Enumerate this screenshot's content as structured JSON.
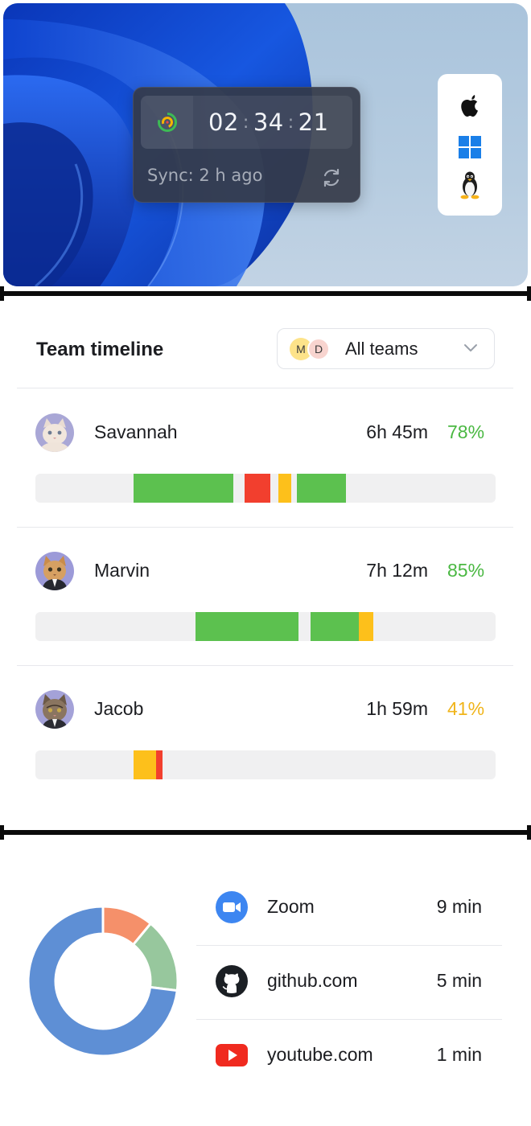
{
  "desktop": {
    "timer": {
      "hours": "02",
      "minutes": "34",
      "seconds": "21"
    },
    "sync_text": "Sync: 2 h ago",
    "icons": [
      "activity-rings-icon",
      "refresh-icon"
    ],
    "os_list": [
      "apple-icon",
      "windows-icon",
      "linux-icon"
    ]
  },
  "timeline": {
    "title": "Team timeline",
    "team_filter": {
      "label": "All teams",
      "avatars": [
        "M",
        "D"
      ]
    },
    "members": [
      {
        "name": "Savannah",
        "time": "6h 45m",
        "percent": "78%",
        "percent_color": "#4ab842",
        "segments": [
          {
            "start": 0.214,
            "end": 0.43,
            "color": "#5cc14f"
          },
          {
            "start": 0.455,
            "end": 0.51,
            "color": "#f23f2e"
          },
          {
            "start": 0.528,
            "end": 0.556,
            "color": "#fdc01b"
          },
          {
            "start": 0.569,
            "end": 0.674,
            "color": "#5cc14f"
          }
        ]
      },
      {
        "name": "Marvin",
        "time": "7h 12m",
        "percent": "85%",
        "percent_color": "#4ab842",
        "segments": [
          {
            "start": 0.348,
            "end": 0.572,
            "color": "#5cc14f"
          },
          {
            "start": 0.598,
            "end": 0.703,
            "color": "#5cc14f"
          },
          {
            "start": 0.703,
            "end": 0.735,
            "color": "#fdc01b"
          }
        ]
      },
      {
        "name": "Jacob",
        "time": "1h 59m",
        "percent": "41%",
        "percent_color": "#f0b41a",
        "segments": [
          {
            "start": 0.213,
            "end": 0.262,
            "color": "#fdc01b"
          },
          {
            "start": 0.262,
            "end": 0.276,
            "color": "#f23f2e"
          }
        ]
      }
    ]
  },
  "apps": {
    "items": [
      {
        "name": "Zoom",
        "duration": "9 min",
        "icon": "zoom-icon"
      },
      {
        "name": "github.com",
        "duration": "5 min",
        "icon": "github-icon"
      },
      {
        "name": "youtube.com",
        "duration": "1 min",
        "icon": "youtube-icon"
      }
    ],
    "chart_data": {
      "type": "pie",
      "variant": "donut",
      "slices": [
        {
          "value": 0.11,
          "color": "#f5906a"
        },
        {
          "value": 0.16,
          "color": "#97c79d"
        },
        {
          "value": 0.73,
          "color": "#5e8fd5"
        }
      ]
    }
  }
}
